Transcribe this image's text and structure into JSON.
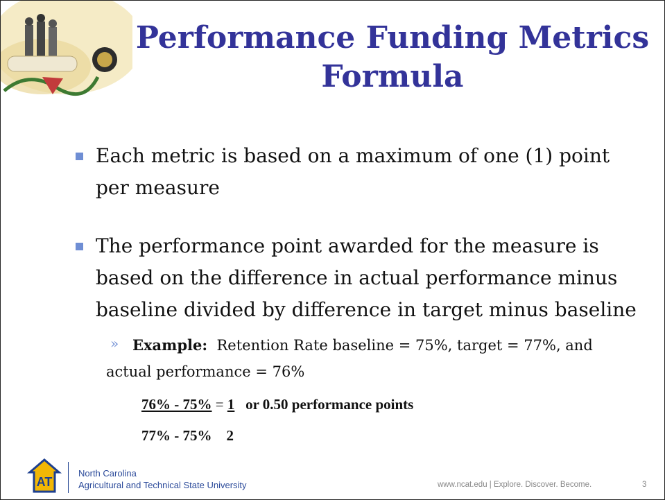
{
  "title_lines": [
    "Performance Funding Metrics",
    "Formula"
  ],
  "bullets": [
    "Each metric is based on a maximum of one (1) point per measure",
    "The performance point awarded for the measure is based on the difference in actual performance minus baseline divided by difference in target minus baseline"
  ],
  "example": {
    "label": "Example:",
    "text": "Retention Rate baseline = 75%, target = 77%,  and actual performance = 76%"
  },
  "formula": {
    "numerator": "76% - 75%",
    "equals": "=",
    "result_numerator": "1",
    "result_text": "or 0.50 performance points",
    "denominator": "77% - 75%",
    "result_denominator": "2"
  },
  "footer": {
    "university_line1": "North Carolina",
    "university_line2": "Agricultural and Technical State University",
    "website": "www.ncat.edu | Explore. Discover. Become.",
    "page_number": "3"
  }
}
